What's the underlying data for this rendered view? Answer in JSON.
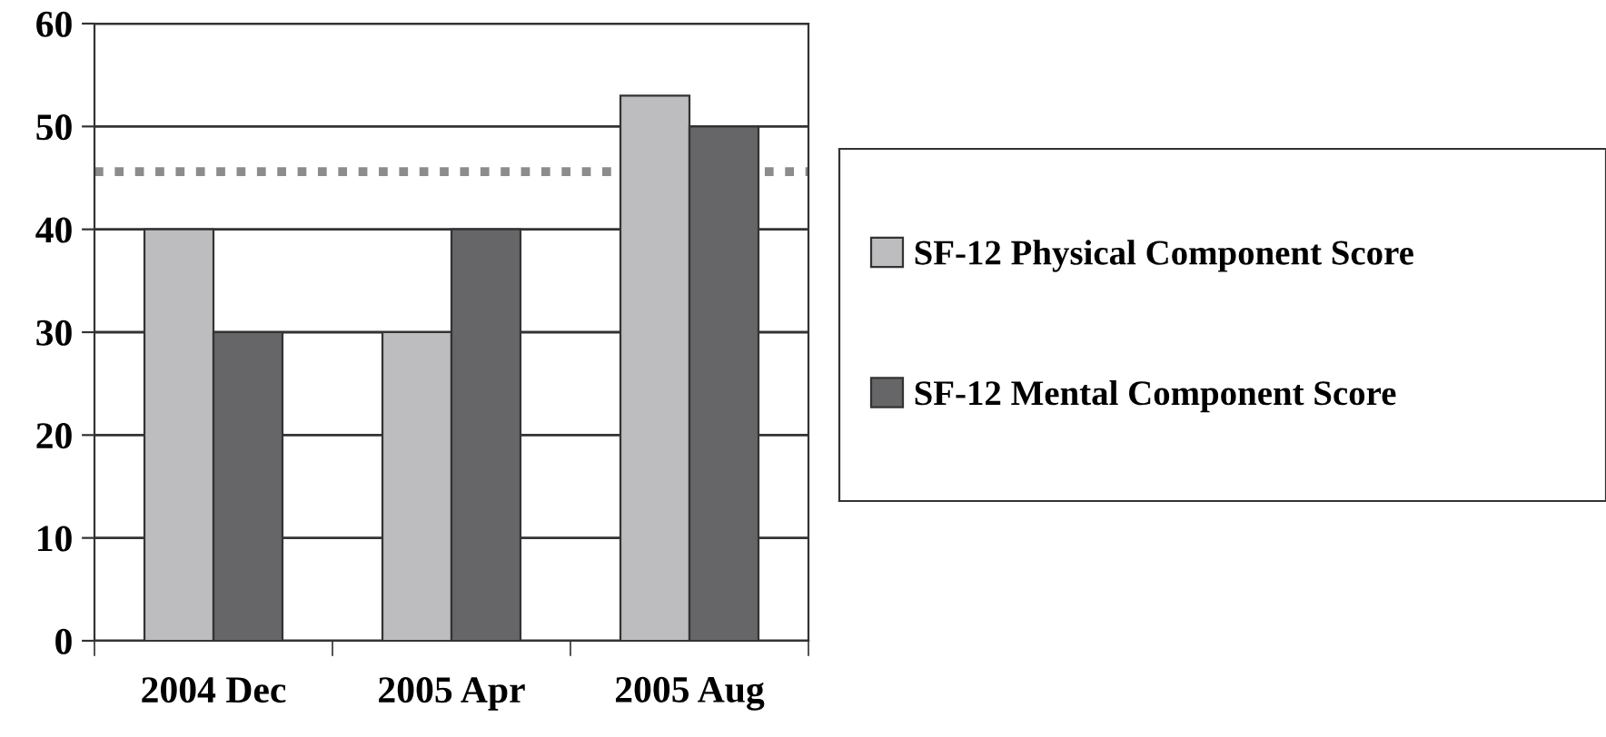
{
  "chart_data": {
    "type": "bar",
    "categories": [
      "2004 Dec",
      "2005 Apr",
      "2005 Aug"
    ],
    "series": [
      {
        "name": "SF-12 Physical Component Score",
        "color": "#bdbdc0",
        "values": [
          40,
          30,
          53
        ]
      },
      {
        "name": "SF-12 Mental Component Score",
        "color": "#666668",
        "values": [
          30,
          40,
          50
        ]
      }
    ],
    "ylim": [
      0,
      60
    ],
    "yticks": [
      0,
      10,
      20,
      30,
      40,
      50,
      60
    ],
    "grid": "y",
    "legend": "right",
    "ref_lines": [
      {
        "axis": "y",
        "value": 45.6,
        "color": "#8c8c8c",
        "line_style": "dotted"
      }
    ]
  }
}
